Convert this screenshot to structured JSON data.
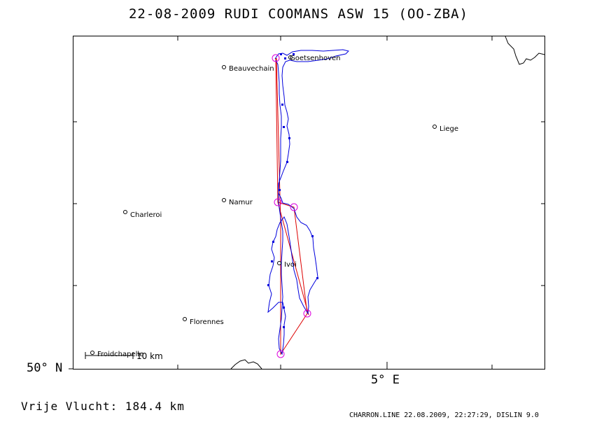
{
  "title": "22-08-2009    RUDI COOMANS    ASW 15 (OO-ZBA)",
  "lat_label": "50° N",
  "lon_label": "5° E",
  "free_flight": "Vrije Vlucht:  184.4 km",
  "footer": "CHARRON.LINE 22.08.2009, 22:27:29, DISLIN 9.0",
  "scale_label": "10 km",
  "towns": [
    "Goetsenhoven",
    "Beauvechain",
    "Liege",
    "Namur",
    "Charleroi",
    "Ivoi",
    "Florennes",
    "Froidchapelle"
  ],
  "colors": {
    "track": "#0000dd",
    "task": "#dd0000",
    "turnpoint": "#dd00dd",
    "frame": "#000000"
  }
}
